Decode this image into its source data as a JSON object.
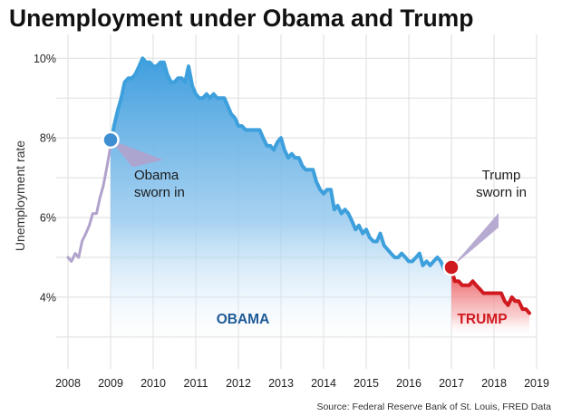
{
  "chart_data": {
    "type": "line",
    "title": "Unemployment under Obama and Trump",
    "ylabel": "Unemployment rate",
    "xlabel": "",
    "xlim": [
      2008,
      2019
    ],
    "ylim": [
      2.2,
      10.2
    ],
    "grid": true,
    "x_ticks": [
      2008,
      2009,
      2010,
      2011,
      2012,
      2013,
      2014,
      2015,
      2016,
      2017,
      2018,
      2019
    ],
    "y_ticks": [
      {
        "value": 4,
        "label": "4%"
      },
      {
        "value": 6,
        "label": "6%"
      },
      {
        "value": 8,
        "label": "8%"
      },
      {
        "value": 10,
        "label": "10%"
      }
    ],
    "series": [
      {
        "name": "",
        "period": "pre-Obama",
        "color": "#b0a2cc",
        "points": [
          [
            2008.0,
            5.0
          ],
          [
            2008.08,
            4.9
          ],
          [
            2008.17,
            5.1
          ],
          [
            2008.25,
            5.0
          ],
          [
            2008.33,
            5.4
          ],
          [
            2008.42,
            5.6
          ],
          [
            2008.5,
            5.8
          ],
          [
            2008.58,
            6.1
          ],
          [
            2008.67,
            6.1
          ],
          [
            2008.75,
            6.5
          ],
          [
            2008.83,
            6.8
          ],
          [
            2008.92,
            7.3
          ],
          [
            2009.0,
            7.8
          ]
        ]
      },
      {
        "name": "",
        "period": "Obama",
        "color": "#3da0dc",
        "points": [
          [
            2009.0,
            7.8
          ],
          [
            2009.08,
            8.3
          ],
          [
            2009.17,
            8.7
          ],
          [
            2009.25,
            9.0
          ],
          [
            2009.33,
            9.4
          ],
          [
            2009.42,
            9.5
          ],
          [
            2009.5,
            9.5
          ],
          [
            2009.58,
            9.6
          ],
          [
            2009.67,
            9.8
          ],
          [
            2009.75,
            10.0
          ],
          [
            2009.83,
            9.9
          ],
          [
            2009.92,
            9.9
          ],
          [
            2010.0,
            9.8
          ],
          [
            2010.08,
            9.8
          ],
          [
            2010.17,
            9.9
          ],
          [
            2010.25,
            9.9
          ],
          [
            2010.33,
            9.6
          ],
          [
            2010.42,
            9.4
          ],
          [
            2010.5,
            9.4
          ],
          [
            2010.58,
            9.5
          ],
          [
            2010.67,
            9.5
          ],
          [
            2010.75,
            9.4
          ],
          [
            2010.83,
            9.8
          ],
          [
            2010.92,
            9.3
          ],
          [
            2011.0,
            9.1
          ],
          [
            2011.08,
            9.0
          ],
          [
            2011.17,
            9.0
          ],
          [
            2011.25,
            9.1
          ],
          [
            2011.33,
            9.0
          ],
          [
            2011.42,
            9.1
          ],
          [
            2011.5,
            9.0
          ],
          [
            2011.58,
            9.0
          ],
          [
            2011.67,
            9.0
          ],
          [
            2011.75,
            8.8
          ],
          [
            2011.83,
            8.6
          ],
          [
            2011.92,
            8.5
          ],
          [
            2012.0,
            8.3
          ],
          [
            2012.08,
            8.3
          ],
          [
            2012.17,
            8.2
          ],
          [
            2012.25,
            8.2
          ],
          [
            2012.33,
            8.2
          ],
          [
            2012.42,
            8.2
          ],
          [
            2012.5,
            8.2
          ],
          [
            2012.58,
            8.0
          ],
          [
            2012.67,
            7.8
          ],
          [
            2012.75,
            7.8
          ],
          [
            2012.83,
            7.7
          ],
          [
            2012.92,
            7.9
          ],
          [
            2013.0,
            8.0
          ],
          [
            2013.08,
            7.7
          ],
          [
            2013.17,
            7.5
          ],
          [
            2013.25,
            7.6
          ],
          [
            2013.33,
            7.5
          ],
          [
            2013.42,
            7.5
          ],
          [
            2013.5,
            7.3
          ],
          [
            2013.58,
            7.2
          ],
          [
            2013.67,
            7.2
          ],
          [
            2013.75,
            7.2
          ],
          [
            2013.83,
            6.9
          ],
          [
            2013.92,
            6.7
          ],
          [
            2014.0,
            6.6
          ],
          [
            2014.08,
            6.7
          ],
          [
            2014.17,
            6.7
          ],
          [
            2014.25,
            6.2
          ],
          [
            2014.33,
            6.3
          ],
          [
            2014.42,
            6.1
          ],
          [
            2014.5,
            6.2
          ],
          [
            2014.58,
            6.1
          ],
          [
            2014.67,
            5.9
          ],
          [
            2014.75,
            5.7
          ],
          [
            2014.83,
            5.8
          ],
          [
            2014.92,
            5.6
          ],
          [
            2015.0,
            5.7
          ],
          [
            2015.08,
            5.5
          ],
          [
            2015.17,
            5.4
          ],
          [
            2015.25,
            5.4
          ],
          [
            2015.33,
            5.6
          ],
          [
            2015.42,
            5.3
          ],
          [
            2015.5,
            5.2
          ],
          [
            2015.58,
            5.1
          ],
          [
            2015.67,
            5.0
          ],
          [
            2015.75,
            5.0
          ],
          [
            2015.83,
            5.1
          ],
          [
            2015.92,
            5.0
          ],
          [
            2016.0,
            4.9
          ],
          [
            2016.08,
            4.9
          ],
          [
            2016.17,
            5.0
          ],
          [
            2016.25,
            5.1
          ],
          [
            2016.33,
            4.8
          ],
          [
            2016.42,
            4.9
          ],
          [
            2016.5,
            4.8
          ],
          [
            2016.58,
            4.9
          ],
          [
            2016.67,
            5.0
          ],
          [
            2016.75,
            4.9
          ],
          [
            2016.83,
            4.7
          ],
          [
            2016.92,
            4.7
          ],
          [
            2017.0,
            4.7
          ]
        ]
      },
      {
        "name": "",
        "period": "Trump",
        "color": "#d0191f",
        "points": [
          [
            2017.0,
            4.7
          ],
          [
            2017.08,
            4.4
          ],
          [
            2017.17,
            4.4
          ],
          [
            2017.25,
            4.3
          ],
          [
            2017.33,
            4.3
          ],
          [
            2017.42,
            4.3
          ],
          [
            2017.5,
            4.4
          ],
          [
            2017.58,
            4.3
          ],
          [
            2017.67,
            4.2
          ],
          [
            2017.75,
            4.1
          ],
          [
            2017.83,
            4.1
          ],
          [
            2017.92,
            4.1
          ],
          [
            2018.0,
            4.1
          ],
          [
            2018.08,
            4.1
          ],
          [
            2018.17,
            4.1
          ],
          [
            2018.25,
            3.9
          ],
          [
            2018.33,
            3.8
          ],
          [
            2018.42,
            4.0
          ],
          [
            2018.5,
            3.9
          ],
          [
            2018.58,
            3.9
          ],
          [
            2018.67,
            3.7
          ],
          [
            2018.75,
            3.7
          ],
          [
            2018.83,
            3.6
          ]
        ]
      }
    ],
    "markers": [
      {
        "x": 2009.0,
        "y": 7.95,
        "color": "#3d8fd1"
      },
      {
        "x": 2017.0,
        "y": 4.75,
        "color": "#d0191f"
      }
    ],
    "annotations": [
      {
        "lines": [
          "Obama",
          "sworn in"
        ],
        "marker": 0
      },
      {
        "lines": [
          "Trump",
          "sworn in"
        ],
        "marker": 1
      }
    ],
    "eras": [
      {
        "label": "OBAMA",
        "color": "#1e5a96"
      },
      {
        "label": "TRUMP",
        "color": "#d0191f"
      }
    ],
    "source": "Source: Federal Reserve Bank of St. Louis, FRED Data"
  }
}
